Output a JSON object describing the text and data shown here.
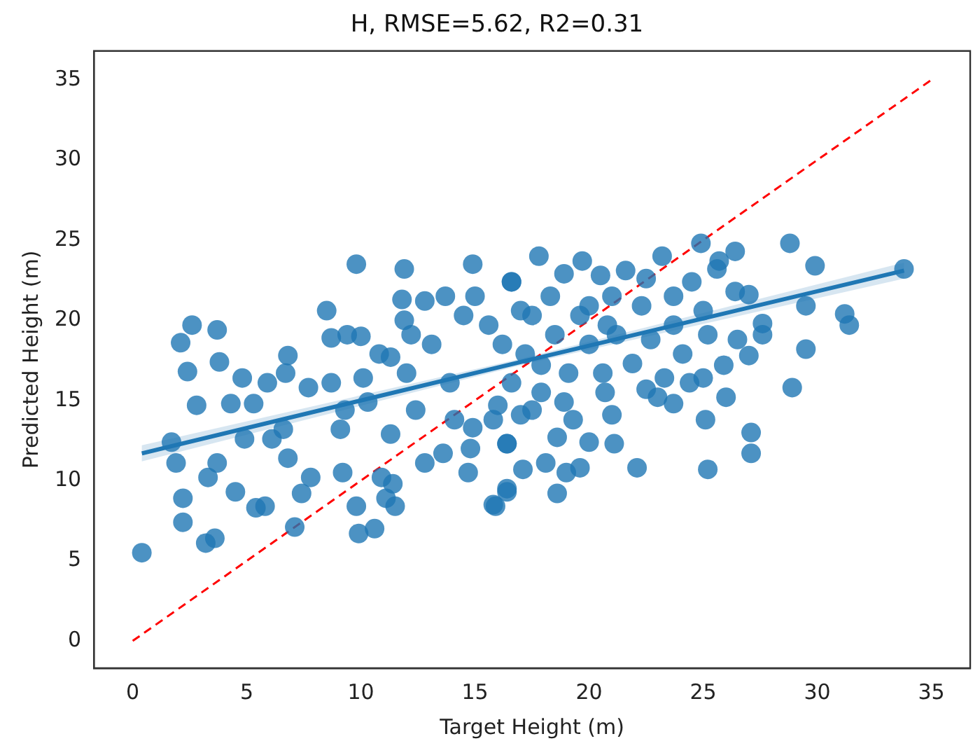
{
  "chart_data": {
    "type": "scatter",
    "title": "H, RMSE=5.62, R2=0.31",
    "xlabel": "Target Height (m)",
    "ylabel": "Predicted Height (m)",
    "xlim": [
      -1.7,
      36.7
    ],
    "ylim": [
      -1.7,
      36.8
    ],
    "xticks": [
      0,
      5,
      10,
      15,
      20,
      25,
      30,
      35
    ],
    "yticks": [
      0,
      5,
      10,
      15,
      20,
      25,
      30,
      35
    ],
    "grid": false,
    "legend": false,
    "marker": "circle",
    "series": [
      {
        "color": "#1f77b4",
        "x": [
          0.4,
          2.1,
          2.6,
          3.7,
          2.4,
          3.8,
          1.7,
          1.9,
          2.2,
          2.2,
          3.2,
          3.6,
          2.8,
          4.3,
          4.8,
          3.3,
          4.5,
          5.3,
          5.9,
          6.8,
          6.7,
          5.4,
          5.8,
          7.1,
          6.6,
          7.8,
          7.4,
          7.7,
          8.5,
          8.7,
          9.4,
          10.0,
          9.8,
          11.9,
          14.9,
          9.1,
          9.2,
          9.8,
          9.9,
          10.6,
          10.1,
          10.8,
          11.3,
          10.9,
          11.4,
          11.1,
          11.5,
          11.8,
          11.9,
          12.2,
          12.0,
          11.3,
          12.8,
          13.6,
          12.8,
          13.7,
          13.1,
          13.9,
          14.5,
          14.7,
          14.8,
          14.9,
          15.0,
          15.6,
          16.0,
          15.8,
          16.4,
          16.4,
          15.8,
          16.6,
          14.1,
          12.4,
          8.7,
          9.3,
          10.3,
          4.9,
          6.1,
          3.7,
          6.8,
          33.8,
          28.8,
          29.9,
          24.9,
          26.4,
          25.7,
          25.6,
          26.4,
          27.0,
          27.6,
          27.6,
          29.5,
          31.2,
          31.4,
          29.5,
          28.9,
          27.0,
          26.5,
          25.9,
          26.0,
          27.1,
          27.1,
          25.2,
          25.1,
          25.0,
          24.4,
          23.7,
          23.0,
          22.5,
          22.1,
          21.1,
          21.0,
          20.0,
          20.7,
          19.6,
          19.0,
          18.6,
          18.1,
          18.6,
          17.1,
          16.4,
          15.9,
          16.4,
          17.5,
          19.3,
          17.9,
          18.9,
          17.8,
          19.7,
          23.2,
          21.6,
          20.5,
          18.9,
          16.6,
          17.0,
          18.3,
          19.6,
          21.0,
          22.3,
          23.7,
          24.5,
          25.0,
          16.2,
          17.2,
          18.5,
          20.0,
          21.2,
          22.7,
          23.7,
          24.1,
          21.9,
          20.6,
          19.1,
          17.9,
          16.6,
          23.3,
          25.2,
          17.5,
          22.5,
          20.8,
          17.0,
          20.0
        ],
        "values": [
          5.5,
          18.6,
          19.7,
          19.4,
          16.8,
          17.4,
          12.4,
          11.1,
          8.9,
          7.4,
          6.1,
          6.4,
          14.7,
          14.8,
          16.4,
          10.2,
          9.3,
          14.8,
          16.1,
          17.8,
          16.7,
          8.3,
          8.4,
          7.1,
          13.2,
          10.2,
          9.2,
          15.8,
          20.6,
          18.9,
          19.1,
          19.0,
          23.5,
          23.2,
          23.5,
          13.2,
          10.5,
          8.4,
          6.7,
          7.0,
          16.4,
          17.9,
          17.7,
          10.2,
          9.8,
          8.9,
          8.4,
          21.3,
          20.0,
          19.1,
          16.7,
          12.9,
          11.1,
          11.7,
          21.2,
          21.5,
          18.5,
          16.1,
          20.3,
          10.5,
          12.0,
          13.3,
          21.5,
          19.7,
          14.7,
          13.8,
          12.3,
          9.3,
          8.5,
          22.4,
          13.8,
          14.4,
          16.1,
          14.4,
          14.9,
          12.6,
          12.6,
          11.1,
          11.4,
          23.2,
          24.8,
          23.4,
          24.8,
          24.3,
          23.7,
          23.2,
          21.8,
          21.6,
          19.8,
          19.1,
          20.9,
          20.4,
          19.7,
          18.2,
          15.8,
          17.8,
          18.8,
          17.2,
          15.2,
          13.0,
          11.7,
          10.7,
          13.8,
          16.4,
          16.1,
          14.8,
          15.2,
          15.7,
          10.8,
          12.3,
          14.1,
          12.4,
          15.5,
          10.8,
          10.5,
          9.2,
          11.1,
          12.7,
          10.7,
          9.5,
          8.4,
          12.3,
          14.4,
          13.8,
          15.5,
          14.9,
          24.0,
          23.7,
          24.0,
          23.1,
          22.8,
          22.9,
          22.4,
          20.6,
          21.5,
          20.3,
          21.5,
          20.9,
          21.5,
          22.4,
          20.6,
          18.5,
          17.9,
          19.1,
          18.5,
          19.1,
          18.8,
          19.7,
          17.9,
          17.3,
          16.7,
          16.7,
          17.2,
          16.1,
          16.4,
          19.1,
          20.3,
          22.6,
          19.7,
          14.1,
          20.9
        ]
      },
      {
        "type": "line",
        "marker": "none",
        "color": "#1f77b4",
        "x": [
          0.4,
          17,
          33.8
        ],
        "values": [
          11.7,
          17.4,
          23.1
        ],
        "lower": [
          11.2,
          17.2,
          22.6
        ],
        "upper": [
          12.2,
          17.6,
          23.6
        ]
      },
      {
        "type": "line",
        "marker": "none",
        "color": "#ff0000",
        "line_style": "dashed",
        "x": [
          0,
          35
        ],
        "values": [
          0,
          35
        ]
      }
    ]
  }
}
